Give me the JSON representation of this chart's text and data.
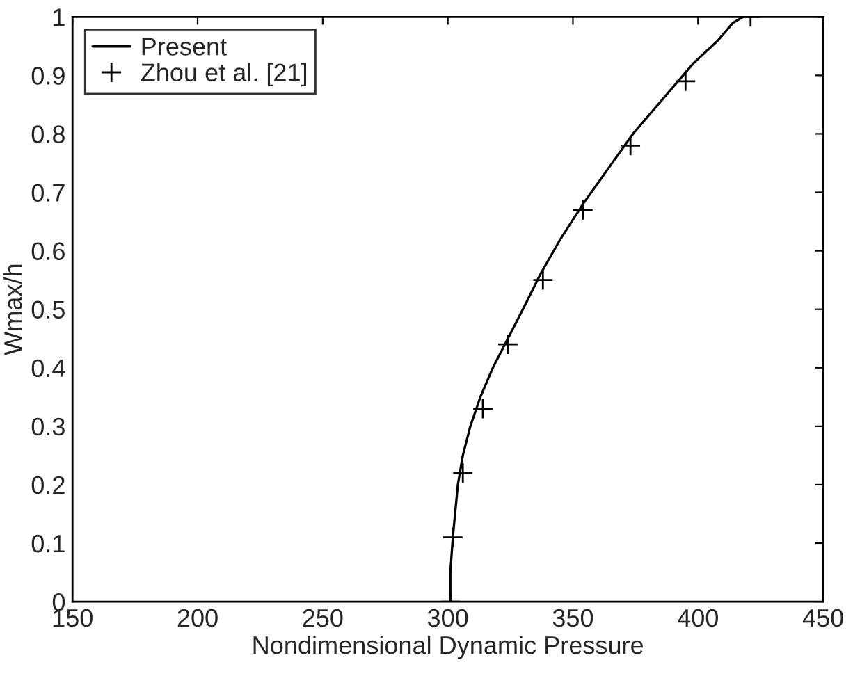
{
  "chart_data": {
    "type": "line",
    "xlabel": "Nondimensional Dynamic Pressure",
    "ylabel": "Wmax/h",
    "xlim": [
      150,
      450
    ],
    "xticks": [
      150,
      200,
      250,
      300,
      350,
      400,
      450
    ],
    "ylim": [
      0,
      1
    ],
    "yticks": [
      0,
      0.1,
      0.2,
      0.3,
      0.4,
      0.5,
      0.6,
      0.7,
      0.8,
      0.9,
      1
    ],
    "grid": false,
    "legend": "top left",
    "series": [
      {
        "name": "Present",
        "color": "#000000",
        "marker": "none",
        "line_style": "solid",
        "x": [
          301,
          301,
          302,
          304,
          306,
          309,
          313,
          318,
          324,
          330,
          337,
          345,
          354,
          364,
          374,
          386,
          398,
          408,
          414,
          418
        ],
        "values": [
          0,
          0.05,
          0.11,
          0.2,
          0.25,
          0.3,
          0.35,
          0.4,
          0.45,
          0.5,
          0.56,
          0.62,
          0.68,
          0.74,
          0.8,
          0.86,
          0.92,
          0.96,
          0.99,
          1.0
        ]
      },
      {
        "name": "Zhou et al. [21]",
        "type": "scatter",
        "color": "#000000",
        "marker": "cross",
        "x": [
          301,
          302,
          306,
          314,
          324,
          338,
          354,
          373,
          395,
          421
        ],
        "values": [
          0,
          0.11,
          0.22,
          0.33,
          0.44,
          0.55,
          0.67,
          0.78,
          0.89,
          1.0
        ]
      }
    ]
  }
}
